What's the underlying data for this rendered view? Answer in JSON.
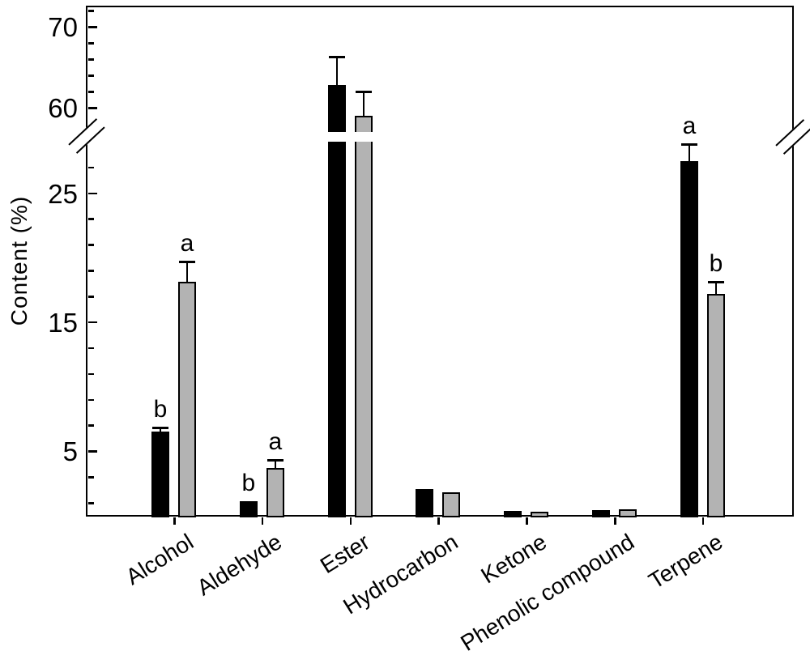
{
  "chart_data": {
    "type": "bar",
    "title": "",
    "xlabel": "",
    "ylabel": "Content (%)",
    "categories": [
      "Alcohol",
      "Aldehyde",
      "Ester",
      "Hydrocarbon",
      "Ketone",
      "Phenolic compound",
      "Terpene"
    ],
    "series": [
      {
        "name": "series-1-black",
        "color": "#000000",
        "values": [
          6.5,
          1.1,
          62.8,
          2.1,
          0.35,
          0.45,
          27.5
        ],
        "errors": [
          0.35,
          0,
          3.5,
          0,
          0,
          0,
          1.3
        ],
        "letters": [
          "b",
          "b",
          "",
          "",
          "",
          "",
          "a"
        ]
      },
      {
        "name": "series-2-gray",
        "color": "#b3b3b3",
        "values": [
          18.1,
          3.7,
          59.0,
          1.8,
          0.3,
          0.5,
          17.2
        ],
        "errors": [
          1.6,
          0.6,
          3.0,
          0,
          0,
          0,
          0.9
        ],
        "letters": [
          "a",
          "a",
          "",
          "",
          "",
          "",
          "b"
        ]
      }
    ],
    "y_axis": {
      "major_ticks_lower": [
        5,
        15,
        25
      ],
      "minor_ticks_lower": [
        1,
        3,
        7,
        9,
        11,
        13,
        17,
        19,
        21,
        23,
        27
      ],
      "major_ticks_upper": [
        60,
        70
      ],
      "minor_ticks_upper": [
        62,
        64,
        66,
        68,
        72
      ],
      "axis_break": {
        "lower_segment_max": 28.5,
        "upper_segment_min": 57.5
      },
      "grid": false
    },
    "legend": "none",
    "error_bars": "upper-one-sided",
    "significance_letters": [
      "a",
      "b"
    ]
  }
}
